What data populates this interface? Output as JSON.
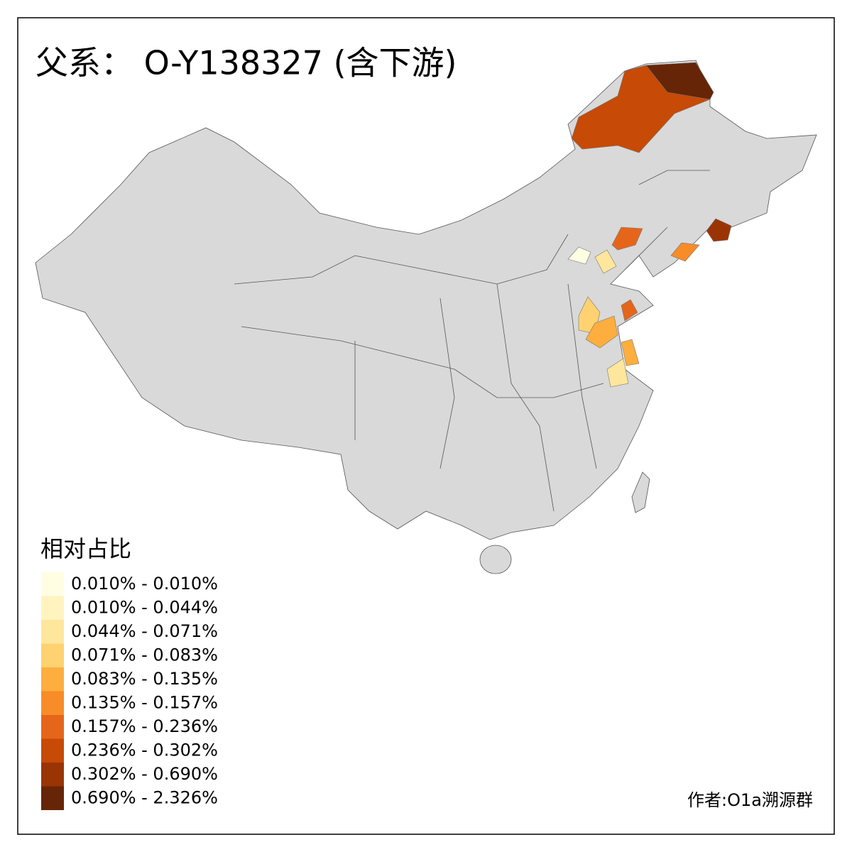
{
  "title": "父系： O-Y138327 (含下游)",
  "legend": {
    "title": "相对占比",
    "items": [
      {
        "label": "0.010% - 0.010%",
        "color": "#fffee3"
      },
      {
        "label": "0.010% - 0.044%",
        "color": "#fff4c0"
      },
      {
        "label": "0.044% - 0.071%",
        "color": "#fee69c"
      },
      {
        "label": "0.071% - 0.083%",
        "color": "#fed270"
      },
      {
        "label": "0.083% - 0.135%",
        "color": "#fdae3e"
      },
      {
        "label": "0.135% - 0.157%",
        "color": "#f78c28"
      },
      {
        "label": "0.157% - 0.236%",
        "color": "#e5661a"
      },
      {
        "label": "0.236% - 0.302%",
        "color": "#c74a06"
      },
      {
        "label": "0.302% - 0.690%",
        "color": "#9b3405"
      },
      {
        "label": "0.690% - 2.326%",
        "color": "#662506"
      }
    ]
  },
  "credit": "作者:O1a溯源群"
}
